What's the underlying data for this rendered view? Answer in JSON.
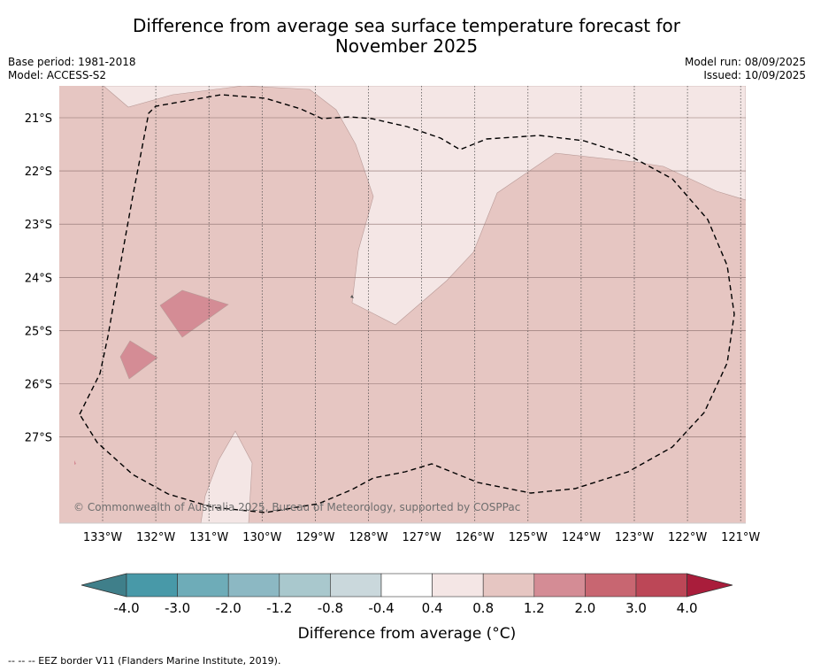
{
  "title_line1": "Difference from average sea surface temperature forecast for",
  "title_line2": "November 2025",
  "base_period": "Base period: 1981-2018",
  "model": "Model: ACCESS-S2",
  "model_run": "Model run: 08/09/2025",
  "issued": "Issued: 10/09/2025",
  "copyright": "© Commonwealth of Australia 2025, Bureau of Meteorology, supported by COSPPac",
  "footnote": "--  --  -- EEZ border V11 (Flanders Marine Institute, 2019).",
  "map": {
    "lon_labels": [
      "133°W",
      "132°W",
      "131°W",
      "130°W",
      "129°W",
      "128°W",
      "127°W",
      "126°W",
      "125°W",
      "124°W",
      "123°W",
      "122°W",
      "121°W"
    ],
    "lat_labels": [
      "21°S",
      "22°S",
      "23°S",
      "24°S",
      "25°S",
      "26°S",
      "27°S"
    ],
    "category_colors": {
      "0.4 to 0.8": "#f4e6e5",
      "0.8 to 1.2": "#e6c6c2",
      "1.2 to 2.0": "#d48c95",
      "2.0 to 3.0": "#c86671",
      "3.0 to 4.0": "#bc4757"
    }
  },
  "colorbar": {
    "label": "Difference from average (°C)",
    "ticks": [
      "-4.0",
      "-3.0",
      "-2.0",
      "-1.2",
      "-0.8",
      "-0.4",
      "0.4",
      "0.8",
      "1.2",
      "2.0",
      "3.0",
      "4.0"
    ],
    "colors": [
      "#4899a8",
      "#6eacb8",
      "#8cb8c3",
      "#a9c8cd",
      "#cad8dc",
      "#ffffff",
      "#f4e6e5",
      "#e6c6c2",
      "#d48c95",
      "#c86671",
      "#bc4757"
    ],
    "under_color": "#3f7f8a",
    "over_color": "#a91d3b"
  }
}
